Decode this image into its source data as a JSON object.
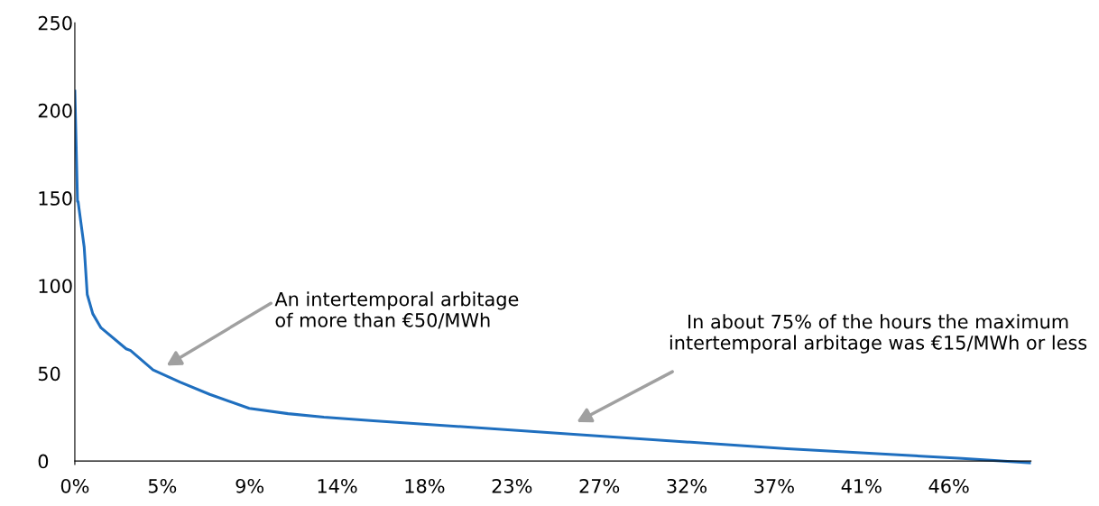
{
  "chart_data": {
    "type": "line",
    "x": [
      0,
      0.14,
      0.17,
      0.49,
      0.65,
      0.94,
      1.37,
      2.69,
      2.92,
      4.1,
      5.51,
      7.07,
      9.14,
      11.17,
      13.05,
      15.64,
      26.48,
      37.32,
      46.5,
      50.04
    ],
    "series": [
      {
        "color": "#1f6fbf",
        "values": [
          211,
          148,
          148,
          122,
          95,
          84,
          76,
          64,
          63,
          52,
          45,
          38,
          30,
          27,
          25,
          23,
          15,
          7,
          1.5,
          -1
        ]
      }
    ],
    "xlim": [
      0,
      50.1
    ],
    "xticks": [
      {
        "value": 0,
        "label": "0%"
      },
      {
        "value": 4.58,
        "label": "5%"
      },
      {
        "value": 9.16,
        "label": "9%"
      },
      {
        "value": 13.74,
        "label": "14%"
      },
      {
        "value": 18.32,
        "label": "18%"
      },
      {
        "value": 22.9,
        "label": "23%"
      },
      {
        "value": 27.48,
        "label": "27%"
      },
      {
        "value": 32.06,
        "label": "32%"
      },
      {
        "value": 36.64,
        "label": "37%"
      },
      {
        "value": 41.22,
        "label": "41%"
      },
      {
        "value": 45.8,
        "label": "46%"
      }
    ],
    "ylim": [
      -2,
      250
    ],
    "yticks": [
      0,
      50,
      100,
      150,
      200,
      250
    ],
    "grid": false,
    "marker": "none",
    "line_style": "solid",
    "annotations": [
      "An intertemporal arbitage\nof more than €50/MWh",
      "In about 75% of the hours the maximum\nintertemporal arbitage was €15/MWh or less"
    ]
  }
}
